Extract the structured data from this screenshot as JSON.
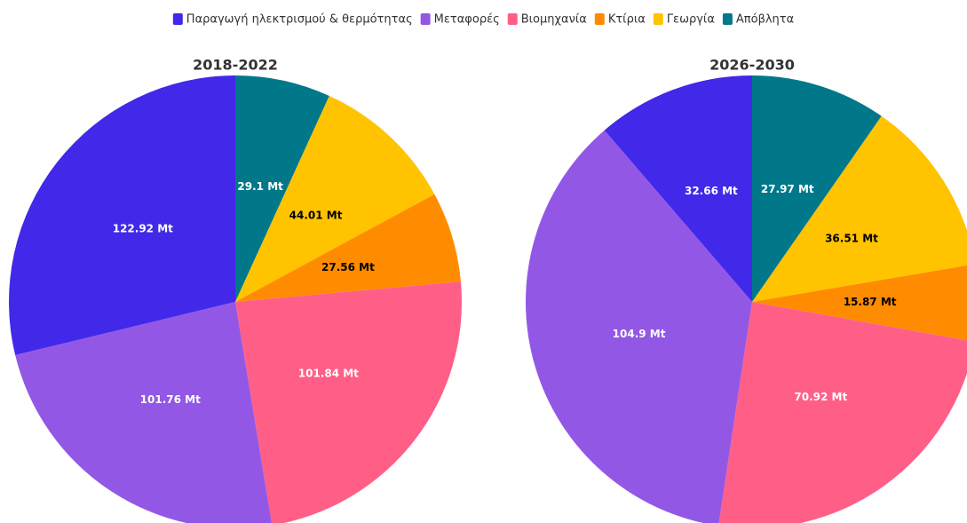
{
  "legend": {
    "categories": [
      "Παραγωγή ηλεκτρισμού & θερμότητας",
      "Μεταφορές",
      "Βιομηχανία",
      "Κτίρια",
      "Γεωργία",
      "Απόβλητα"
    ],
    "colors": [
      "#4228e8",
      "#9357e6",
      "#ff5f87",
      "#ff8c00",
      "#ffc300",
      "#00788a"
    ]
  },
  "chart_data": [
    {
      "type": "pie",
      "title": "2018-2022",
      "values": [
        122.92,
        101.76,
        101.84,
        27.56,
        44.01,
        29.1
      ],
      "value_labels": [
        "122.92 Mt",
        "101.76 Mt",
        "101.84 Mt",
        "27.56 Mt",
        "44.01 Mt",
        "29.1 Mt"
      ]
    },
    {
      "type": "pie",
      "title": "2026-2030",
      "values": [
        32.66,
        104.9,
        70.92,
        15.87,
        36.51,
        27.97
      ],
      "value_labels": [
        "32.66 Mt",
        "104.9 Mt",
        "70.92 Mt",
        "15.87 Mt",
        "36.51 Mt",
        "27.97 Mt"
      ]
    }
  ]
}
